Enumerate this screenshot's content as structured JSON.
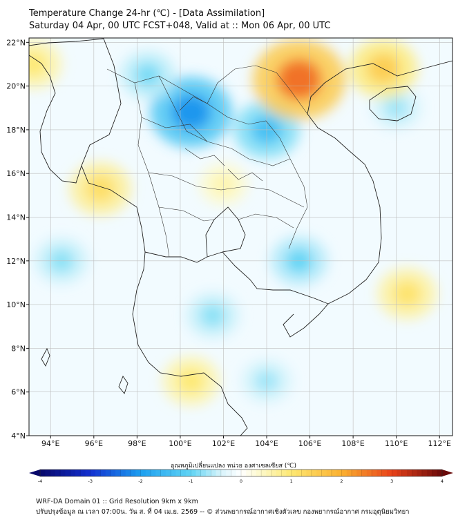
{
  "title": {
    "line1": "Temperature Change 24-hr (℃) - [Data Assimilation]",
    "line2": "Saturday 04 Apr, 00 UTC FCST+048, Valid at :: Mon 06 Apr, 00 UTC"
  },
  "map": {
    "lat_labels": [
      "22°N",
      "20°N",
      "18°N",
      "16°N",
      "14°N",
      "12°N",
      "10°N",
      "8°N",
      "6°N",
      "4°N"
    ],
    "lon_labels": [
      "94°E",
      "96°E",
      "98°E",
      "100°E",
      "102°E",
      "104°E",
      "106°E",
      "108°E",
      "110°E",
      "112°E"
    ],
    "lat_values": [
      22,
      20,
      18,
      16,
      14,
      12,
      10,
      8,
      6,
      4
    ],
    "lon_values": [
      94,
      96,
      98,
      100,
      102,
      104,
      106,
      108,
      110,
      112
    ],
    "extent": {
      "lon_min": 93.0,
      "lon_max": 112.6,
      "lat_min": 4.0,
      "lat_max": 22.2
    },
    "anomalies": [
      {
        "name": "cold-core-north-laos",
        "lat": 18.8,
        "lon": 100.5,
        "value": -2.1
      },
      {
        "name": "cold-north-thailand",
        "lat": 18.0,
        "lon": 104.0,
        "value": -1.4
      },
      {
        "name": "cold-myanmar-north",
        "lat": 20.5,
        "lon": 98.5,
        "value": -0.9
      },
      {
        "name": "cold-cambodia",
        "lat": 12.0,
        "lon": 105.5,
        "value": -1.0
      },
      {
        "name": "cold-gulf",
        "lat": 9.5,
        "lon": 101.5,
        "value": -0.8
      },
      {
        "name": "cold-west-sea",
        "lat": 12.0,
        "lon": 94.5,
        "value": -0.8
      },
      {
        "name": "cold-south-sea",
        "lat": 6.5,
        "lon": 104.0,
        "value": -0.7
      },
      {
        "name": "cold-hainan",
        "lat": 19.0,
        "lon": 110.0,
        "value": -0.7
      },
      {
        "name": "warm-vietnam-north",
        "lat": 20.3,
        "lon": 105.5,
        "value": 2.6
      },
      {
        "name": "warm-gulf-tonkin",
        "lat": 20.8,
        "lon": 109.4,
        "value": 1.5
      },
      {
        "name": "warm-west-myanmar",
        "lat": 15.3,
        "lon": 96.3,
        "value": 1.2
      },
      {
        "name": "warm-east-sea",
        "lat": 10.5,
        "lon": 110.5,
        "value": 1.1
      },
      {
        "name": "warm-south-peninsula",
        "lat": 6.5,
        "lon": 100.5,
        "value": 1.0
      },
      {
        "name": "warm-northwest",
        "lat": 21.0,
        "lon": 93.2,
        "value": 1.0
      },
      {
        "name": "warm-central-thailand",
        "lat": 15.5,
        "lon": 102.0,
        "value": 0.6
      }
    ]
  },
  "colorbar": {
    "title": "อุณหภูมิเปลี่ยนแปลง หน่วย องศาเซลเซียส (℃)",
    "min": -4,
    "max": 4,
    "tick_labels": [
      "-4",
      "-3",
      "-2",
      "-1",
      "0",
      "1",
      "2",
      "3",
      "4"
    ],
    "tick_values": [
      -4,
      -3,
      -2,
      -1,
      0,
      1,
      2,
      3,
      4
    ]
  },
  "footer": {
    "line1": "WRF-DA Domain 01 :: Grid Resolution 9km x 9km",
    "line2": "ปรับปรุงข้อมูล ณ เวลา 07:00น. วัน ส. ที่ 04 เม.ย. 2569 -- © ส่วนพยากรณ์อากาศเชิงตัวเลข กองพยากรณ์อากาศ กรมอุตุนิยมวิทยา"
  }
}
